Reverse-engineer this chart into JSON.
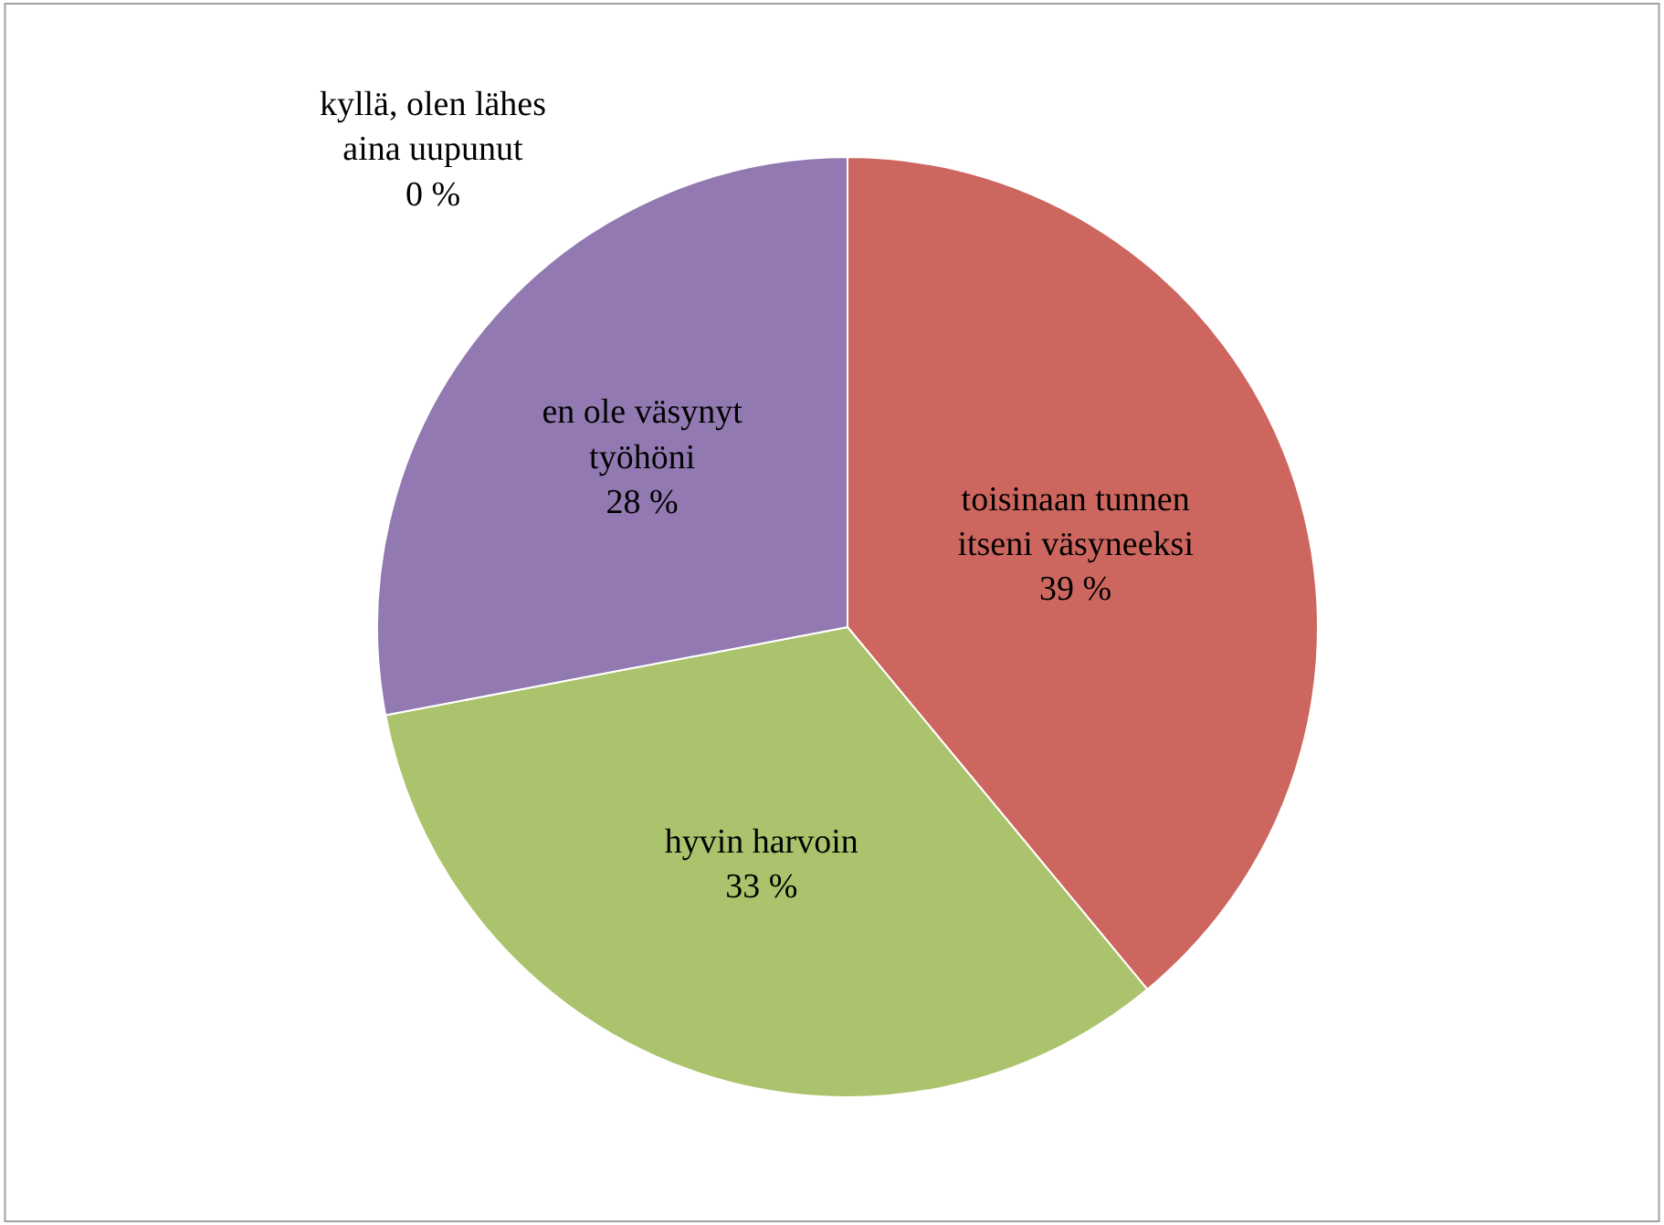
{
  "chart_data": {
    "type": "pie",
    "categories": [
      "toisinaan tunnen itseni väsyneeksi",
      "hyvin harvoin",
      "en ole väsynyt työhöni",
      "kyllä, olen lähes aina uupunut"
    ],
    "values": [
      39,
      33,
      28,
      0
    ],
    "value_labels": [
      "39 %",
      "33 %",
      "28 %",
      "0 %"
    ],
    "colors": [
      "#cd665f",
      "#abc36c",
      "#9279b1",
      "#4f81bd"
    ],
    "legend": false
  }
}
